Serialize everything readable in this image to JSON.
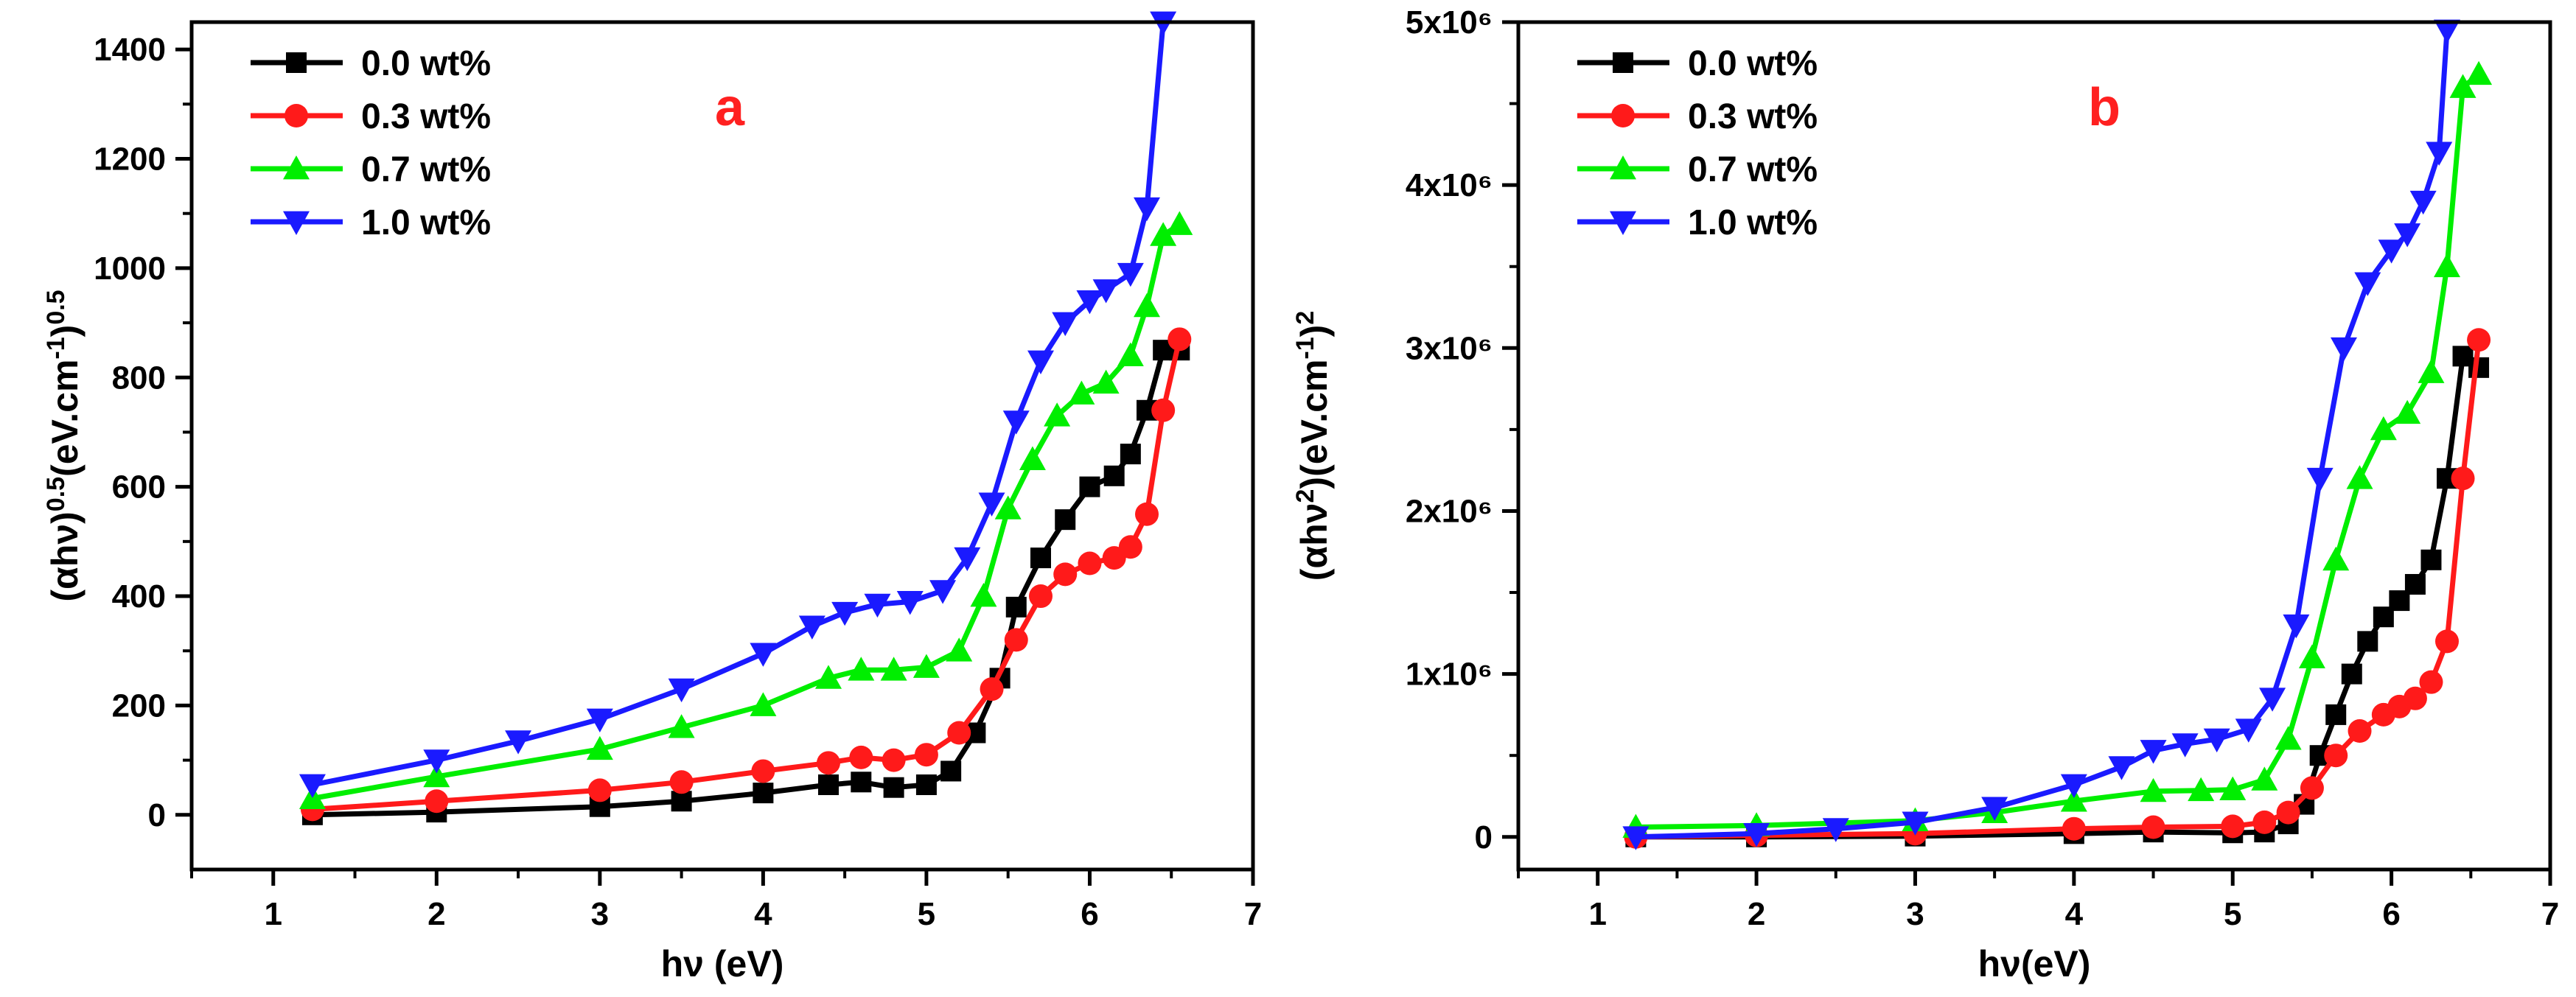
{
  "colors": {
    "0.0 wt%": "#000000",
    "0.3 wt%": "#ff1a1a",
    "0.7 wt%": "#00ee00",
    "1.0 wt%": "#1a1aff"
  },
  "chart_data": [
    {
      "type": "line",
      "panel": "a",
      "title": "",
      "xlabel": "hν (eV)",
      "ylabel": "(αhν)^0.5(eV.cm^-1)^0.5",
      "ylabel_parts": {
        "a": "(αhν)",
        "b": "0.5",
        "c": "(eV.cm",
        "d": "-1",
        "e": ")",
        "f": "0.5"
      },
      "xlim": [
        0.5,
        7
      ],
      "ylim": [
        -100,
        1450
      ],
      "xticks": [
        1,
        2,
        3,
        4,
        5,
        6,
        7
      ],
      "yticks": [
        0,
        200,
        400,
        600,
        800,
        1000,
        1200,
        1400
      ],
      "ytick_labels": [
        "0",
        "200",
        "400",
        "600",
        "800",
        "1000",
        "1200",
        "1400"
      ],
      "legend_position": "top-left",
      "series": [
        {
          "name": "0.0 wt%",
          "marker": "square",
          "x": [
            1.24,
            2.0,
            3.0,
            3.5,
            4.0,
            4.4,
            4.6,
            4.8,
            5.0,
            5.15,
            5.3,
            5.45,
            5.55,
            5.7,
            5.85,
            6.0,
            6.15,
            6.25,
            6.35,
            6.45,
            6.55
          ],
          "y": [
            0,
            5,
            15,
            25,
            40,
            55,
            60,
            50,
            55,
            80,
            150,
            250,
            380,
            470,
            540,
            600,
            620,
            660,
            740,
            850,
            850
          ]
        },
        {
          "name": "0.3 wt%",
          "marker": "circle",
          "x": [
            1.24,
            2.0,
            3.0,
            3.5,
            4.0,
            4.4,
            4.6,
            4.8,
            5.0,
            5.2,
            5.4,
            5.55,
            5.7,
            5.85,
            6.0,
            6.15,
            6.25,
            6.35,
            6.45,
            6.55
          ],
          "y": [
            10,
            25,
            45,
            60,
            80,
            95,
            105,
            100,
            110,
            150,
            230,
            320,
            400,
            440,
            460,
            470,
            490,
            550,
            740,
            870
          ]
        },
        {
          "name": "0.7 wt%",
          "marker": "triangle-up",
          "x": [
            1.24,
            2.0,
            3.0,
            3.5,
            4.0,
            4.4,
            4.6,
            4.8,
            5.0,
            5.2,
            5.35,
            5.5,
            5.65,
            5.8,
            5.95,
            6.1,
            6.25,
            6.35,
            6.45,
            6.55
          ],
          "y": [
            30,
            70,
            120,
            160,
            200,
            250,
            265,
            265,
            270,
            300,
            400,
            560,
            650,
            730,
            770,
            790,
            840,
            930,
            1060,
            1080
          ]
        },
        {
          "name": "1.0 wt%",
          "marker": "triangle-down",
          "x": [
            1.24,
            2.0,
            2.5,
            3.0,
            3.5,
            4.0,
            4.3,
            4.5,
            4.7,
            4.9,
            5.1,
            5.25,
            5.4,
            5.55,
            5.7,
            5.85,
            6.0,
            6.1,
            6.25,
            6.35,
            6.45
          ],
          "y": [
            55,
            100,
            135,
            175,
            230,
            295,
            345,
            370,
            385,
            390,
            410,
            470,
            570,
            720,
            830,
            900,
            940,
            960,
            990,
            1110,
            1450
          ]
        }
      ]
    },
    {
      "type": "line",
      "panel": "b",
      "title": "",
      "xlabel": "hν(eV)",
      "ylabel": "(αhν^2)(eV.cm^-1)^2",
      "ylabel_parts": {
        "a": "(αhν",
        "b": "2",
        "c": ")(eV.cm",
        "d": "-1",
        "e": ")",
        "f": "2"
      },
      "xlim": [
        0.5,
        7
      ],
      "ylim": [
        -200000,
        5000000
      ],
      "xticks": [
        1,
        2,
        3,
        4,
        5,
        6,
        7
      ],
      "yticks": [
        0,
        1000000,
        2000000,
        3000000,
        4000000,
        5000000
      ],
      "ytick_labels": [
        "0",
        "1x10⁶",
        "2x10⁶",
        "3x10⁶",
        "4x10⁶",
        "5x10⁶"
      ],
      "legend_position": "top-left",
      "series": [
        {
          "name": "0.0 wt%",
          "marker": "square",
          "x": [
            1.24,
            2.0,
            3.0,
            4.0,
            4.5,
            5.0,
            5.2,
            5.35,
            5.45,
            5.55,
            5.65,
            5.75,
            5.85,
            5.95,
            6.05,
            6.15,
            6.25,
            6.35,
            6.45,
            6.55
          ],
          "y": [
            0,
            0,
            5000,
            20000,
            30000,
            25000,
            30000,
            80000,
            200000,
            500000,
            750000,
            1000000,
            1200000,
            1350000,
            1450000,
            1550000,
            1700000,
            2200000,
            2950000,
            2880000
          ]
        },
        {
          "name": "0.3 wt%",
          "marker": "circle",
          "x": [
            1.24,
            2.0,
            3.0,
            4.0,
            4.5,
            5.0,
            5.2,
            5.35,
            5.5,
            5.65,
            5.8,
            5.95,
            6.05,
            6.15,
            6.25,
            6.35,
            6.45,
            6.55
          ],
          "y": [
            0,
            10000,
            20000,
            50000,
            60000,
            65000,
            90000,
            150000,
            300000,
            500000,
            650000,
            750000,
            800000,
            850000,
            950000,
            1200000,
            2200000,
            3050000
          ]
        },
        {
          "name": "0.7 wt%",
          "marker": "triangle-up",
          "x": [
            1.24,
            2.0,
            3.0,
            3.5,
            4.0,
            4.5,
            4.8,
            5.0,
            5.2,
            5.35,
            5.5,
            5.65,
            5.8,
            5.95,
            6.1,
            6.25,
            6.35,
            6.45,
            6.55
          ],
          "y": [
            60000,
            70000,
            100000,
            150000,
            220000,
            280000,
            285000,
            290000,
            350000,
            600000,
            1100000,
            1700000,
            2200000,
            2500000,
            2600000,
            2850000,
            3500000,
            4600000,
            4680000
          ]
        },
        {
          "name": "1.0 wt%",
          "marker": "triangle-down",
          "x": [
            1.24,
            2.0,
            2.5,
            3.0,
            3.5,
            4.0,
            4.3,
            4.5,
            4.7,
            4.9,
            5.1,
            5.25,
            5.4,
            5.55,
            5.7,
            5.85,
            6.0,
            6.1,
            6.2,
            6.3,
            6.35
          ],
          "y": [
            0,
            20000,
            50000,
            90000,
            180000,
            320000,
            430000,
            530000,
            570000,
            600000,
            660000,
            850000,
            1300000,
            2200000,
            3000000,
            3400000,
            3600000,
            3700000,
            3900000,
            4200000,
            4950000
          ]
        }
      ]
    }
  ]
}
